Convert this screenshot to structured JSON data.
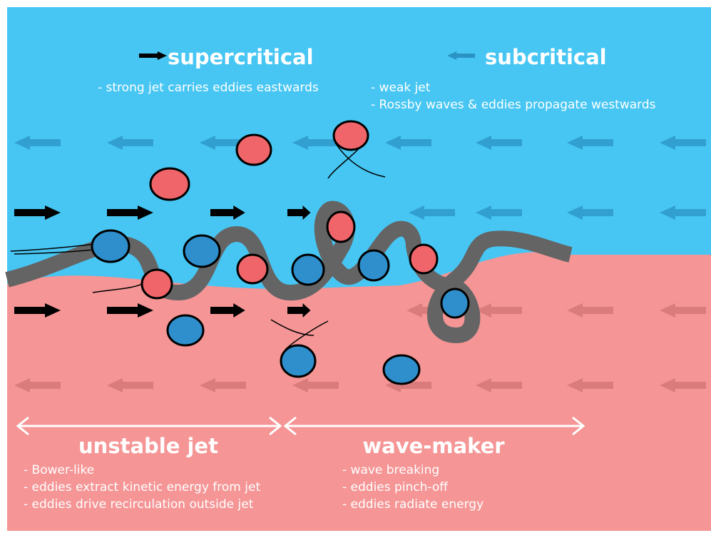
{
  "labels": {
    "supercritical": {
      "title": "supercritical",
      "points": [
        "- strong jet carries eddies eastwards"
      ]
    },
    "subcritical": {
      "title": "subcritical",
      "points": [
        "- weak jet",
        "- Rossby waves & eddies propagate westwards"
      ]
    },
    "unstable_jet": {
      "title": "unstable jet",
      "points": [
        "- Bower-like",
        "- eddies extract kinetic energy from jet",
        "- eddies drive recirculation outside jet"
      ]
    },
    "wave_maker": {
      "title": "wave-maker",
      "points": [
        "- wave breaking",
        "- eddies pinch-off",
        "- eddies radiate energy"
      ]
    }
  }
}
